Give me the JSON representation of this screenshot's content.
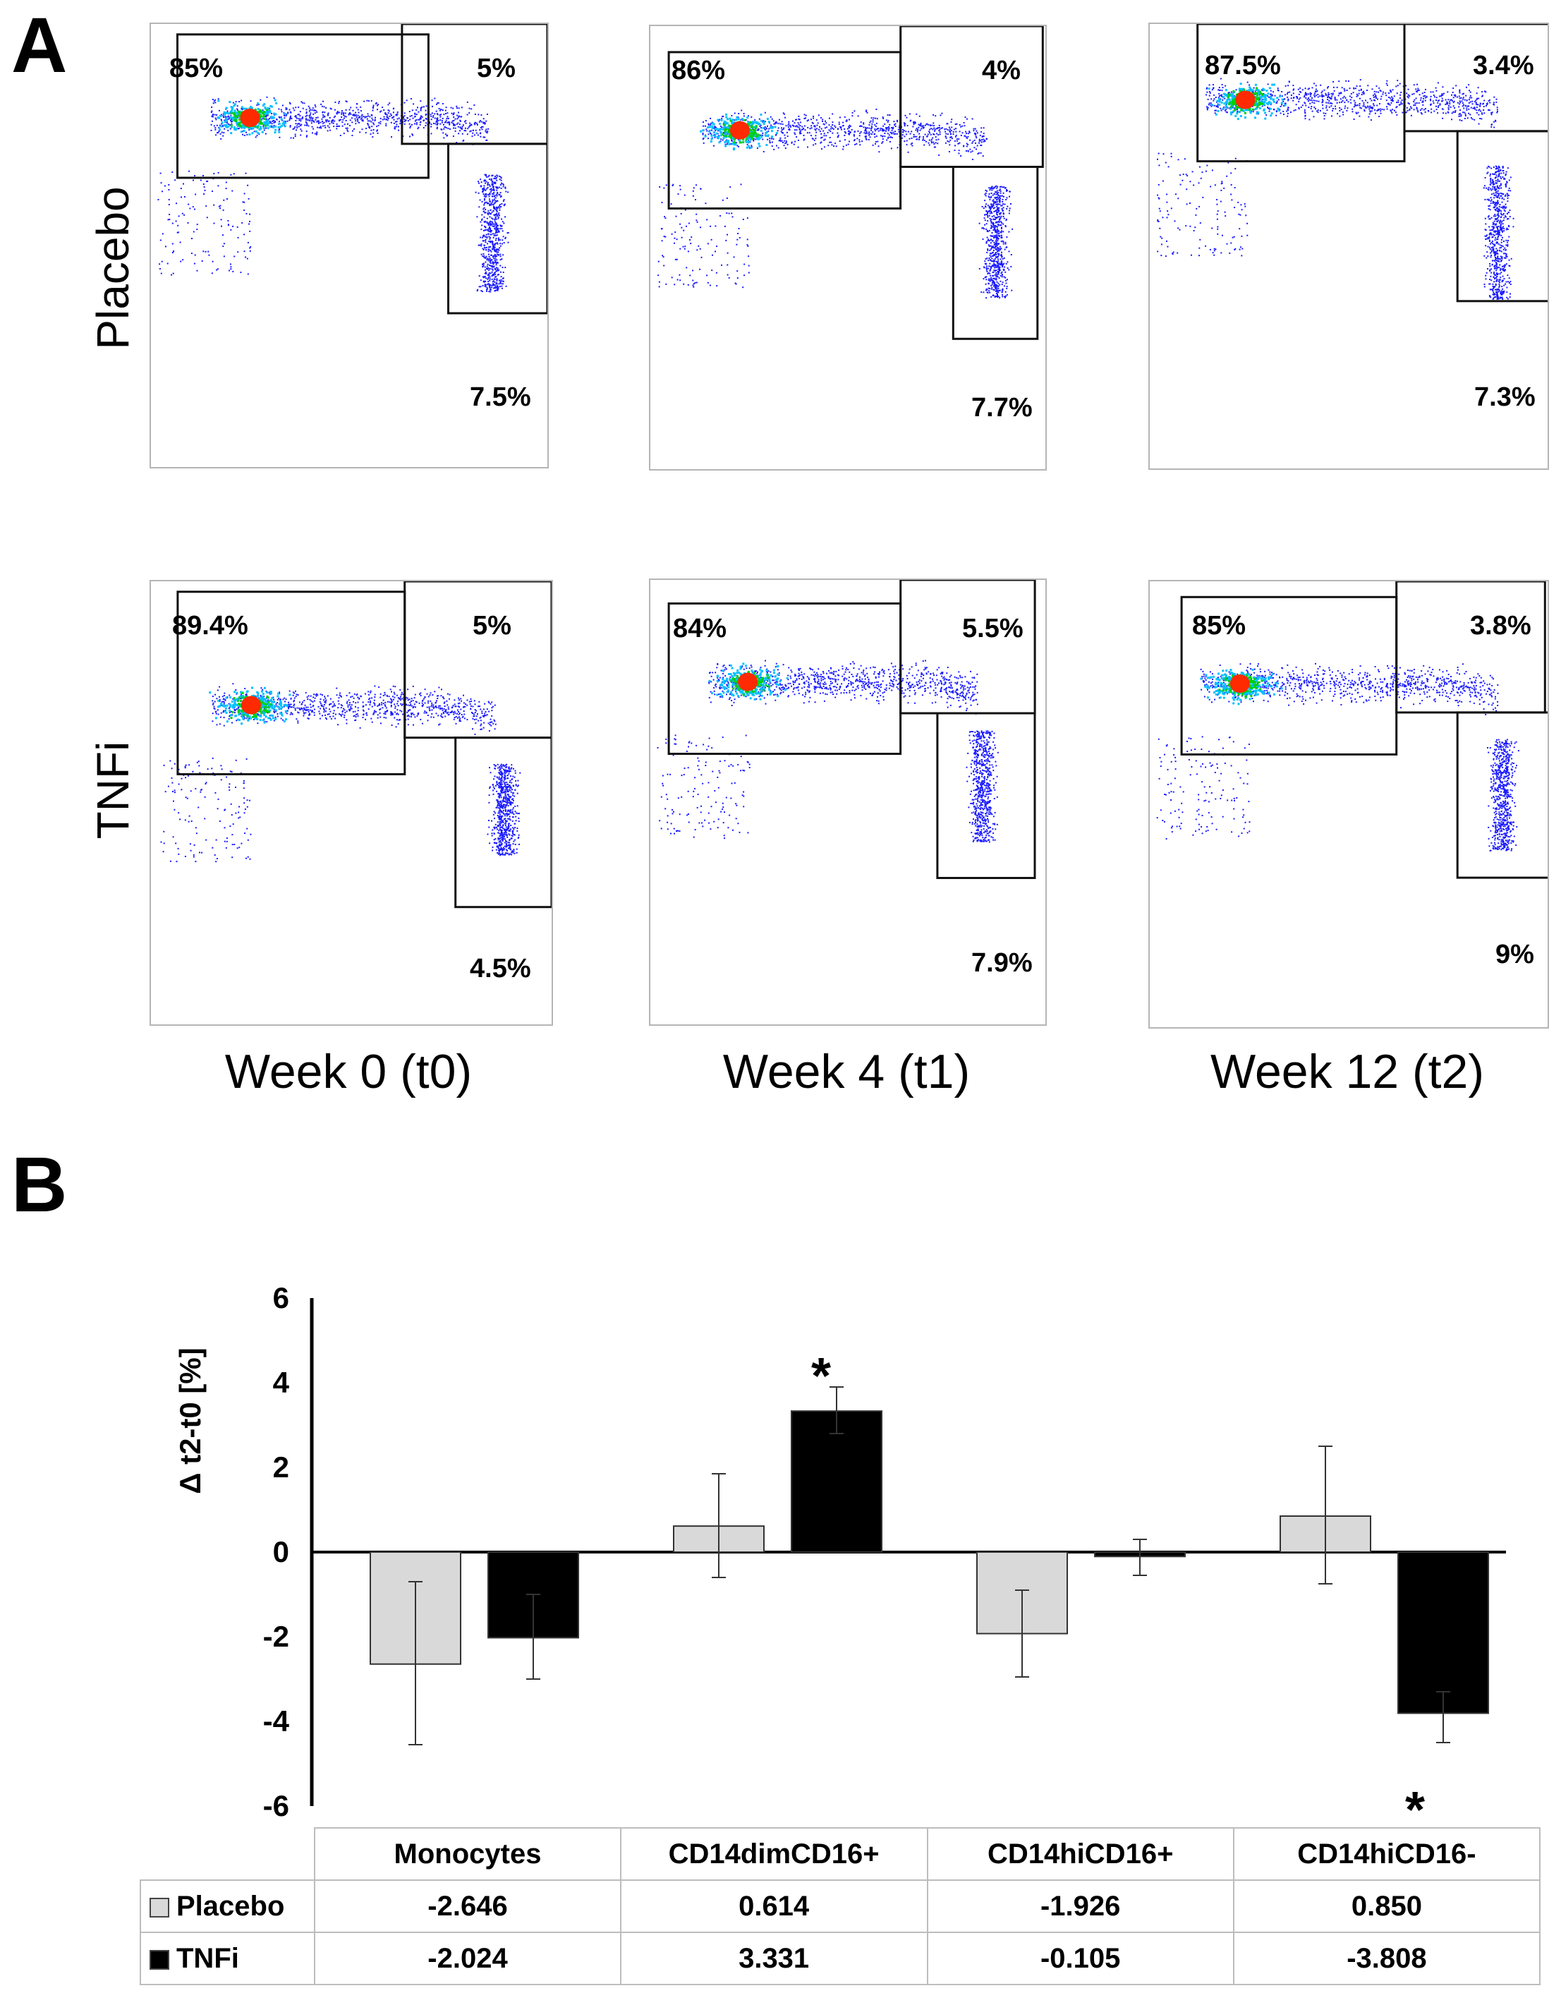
{
  "panel_a": {
    "letter": "A",
    "rows": [
      "Placebo",
      "TNFi"
    ],
    "columns": [
      "Week 0 (t0)",
      "Week 4 (t1)",
      "Week 12 (t2)"
    ],
    "plots": [
      {
        "id": "placebo-w0",
        "gate_top_left": "85%",
        "gate_top_right": "5%",
        "gate_bottom": "7.5%"
      },
      {
        "id": "placebo-w4",
        "gate_top_left": "86%",
        "gate_top_right": "4%",
        "gate_bottom": "7.7%"
      },
      {
        "id": "placebo-w12",
        "gate_top_left": "87.5%",
        "gate_top_right": "3.4%",
        "gate_bottom": "7.3%"
      },
      {
        "id": "tnfi-w0",
        "gate_top_left": "89.4%",
        "gate_top_right": "5%",
        "gate_bottom": "4.5%"
      },
      {
        "id": "tnfi-w4",
        "gate_top_left": "84%",
        "gate_top_right": "5.5%",
        "gate_bottom": "7.9%"
      },
      {
        "id": "tnfi-w12",
        "gate_top_left": "85%",
        "gate_top_right": "3.8%",
        "gate_bottom": "9%"
      }
    ],
    "colors": {
      "low": "#1a1aff",
      "mid": "#00c0ff",
      "high": "#00d000",
      "peak": "#ff2a00"
    }
  },
  "panel_b": {
    "letter": "B",
    "table": {
      "headers": [
        "Monocytes",
        "CD14dimCD16+",
        "CD14hiCD16+",
        "CD14hiCD16-"
      ],
      "rows": [
        {
          "label": "Placebo",
          "values": [
            "-2.646",
            "0.614",
            "-1.926",
            "0.850"
          ]
        },
        {
          "label": "TNFi",
          "values": [
            "-2.024",
            "3.331",
            "-0.105",
            "-3.808"
          ]
        }
      ]
    },
    "significance_marker": "*"
  },
  "chart_data": {
    "type": "bar",
    "title": "",
    "xlabel": "",
    "ylabel": "Δ t2-t0 [%]",
    "ylim": [
      -6,
      6
    ],
    "yticks": [
      "6",
      "4",
      "2",
      "0",
      "-2",
      "-4",
      "-6"
    ],
    "categories": [
      "Monocytes",
      "CD14dimCD16+",
      "CD14hiCD16+",
      "CD14hiCD16-"
    ],
    "series": [
      {
        "name": "Placebo",
        "color": "#d9d9d9",
        "values": [
          -2.646,
          0.614,
          -1.926,
          0.85
        ],
        "error_low": [
          -4.55,
          -0.6,
          -2.95,
          -0.75
        ],
        "error_high": [
          -0.7,
          1.85,
          -0.9,
          2.5
        ]
      },
      {
        "name": "TNFi",
        "color": "#000000",
        "values": [
          -2.024,
          3.331,
          -0.105,
          -3.808
        ],
        "error_low": [
          -3.0,
          2.8,
          -0.55,
          -4.5
        ],
        "error_high": [
          -1.0,
          3.9,
          0.3,
          -3.3
        ]
      }
    ],
    "significant": [
      {
        "series": "TNFi",
        "category": "CD14dimCD16+",
        "position": "above"
      },
      {
        "series": "TNFi",
        "category": "CD14hiCD16-",
        "position": "below"
      }
    ],
    "grid": false,
    "legend": "table-bottom"
  }
}
